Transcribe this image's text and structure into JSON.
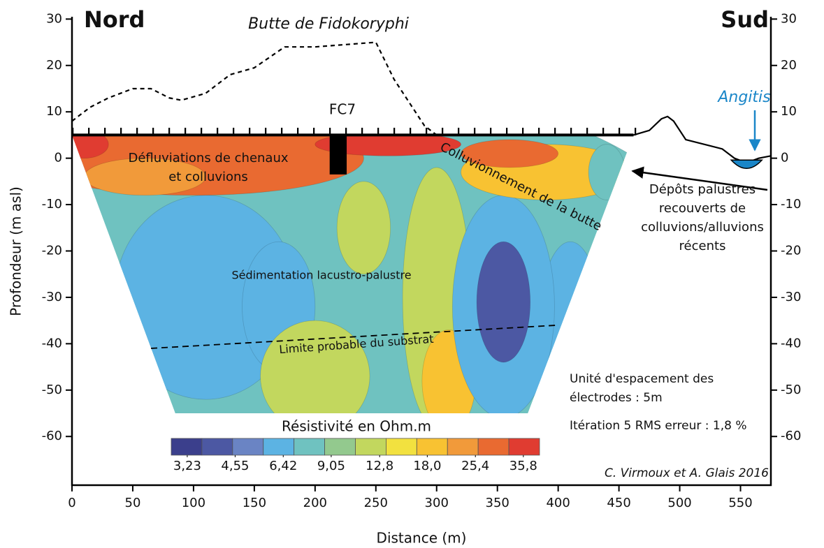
{
  "chart_data": {
    "type": "resistivity-section",
    "title_left": "Nord",
    "title_right": "Sud",
    "hill_label": "Butte de Fidokoryphi",
    "borehole": {
      "label": "FC7",
      "x": [
        212,
        226
      ],
      "y": [
        -3.5,
        5
      ]
    },
    "river_label": "Angitis",
    "annotations": {
      "channels": [
        "Défluviations de chenaux",
        "et colluvions"
      ],
      "colluvium": "Colluvionnement de la butte",
      "deposits": [
        "Dépôts palustres",
        "recouverts de",
        "colluvions/alluvions",
        "récents"
      ],
      "sedimentation": "Sédimentation lacustro-palustre",
      "substrate": "Limite probable du substrat"
    },
    "notes": {
      "spacing": [
        "Unité d'espacement des",
        "électrodes : 5m"
      ],
      "rms": "Itération 5 RMS erreur : 1,8 %"
    },
    "credit": "C. Virmoux et A. Glais 2016",
    "xlabel": "Distance (m)",
    "ylabel": "Profondeur (m asl)",
    "xlim": [
      0,
      575
    ],
    "xticks": [
      0,
      50,
      100,
      150,
      200,
      250,
      300,
      350,
      400,
      450,
      500,
      550
    ],
    "ylim": [
      -70.5,
      30.5
    ],
    "yticks": [
      30,
      20,
      10,
      0,
      -10,
      -20,
      -30,
      -40,
      -50,
      -60
    ],
    "y2lim": [
      -70.5,
      30.5
    ],
    "y2ticks": [
      30,
      20,
      10,
      0,
      -10,
      -20,
      -30,
      -40,
      -50,
      -60
    ],
    "topography": {
      "x": [
        0,
        15,
        30,
        50,
        65,
        80,
        90,
        110,
        130,
        150,
        175,
        200,
        250,
        265,
        290,
        300
      ],
      "y": [
        8,
        11,
        13,
        15,
        15,
        13,
        12.5,
        14,
        18,
        19.5,
        24,
        24,
        25,
        17,
        7,
        5
      ]
    },
    "ground": {
      "x": [
        462,
        475,
        485,
        490,
        495,
        505,
        520,
        535,
        545,
        555,
        565,
        575
      ],
      "y": [
        5,
        6,
        8.5,
        9,
        8,
        4,
        3,
        2,
        0,
        -1,
        0,
        0.5
      ]
    },
    "section": {
      "x": [
        0,
        462,
        375,
        85
      ],
      "y": [
        5,
        5,
        -55,
        -55
      ]
    },
    "substrate_line": {
      "x": [
        65,
        400
      ],
      "y": [
        -41,
        -36
      ]
    },
    "field": [
      {
        "x": 230,
        "y": -25,
        "rx": 300,
        "ry": 40,
        "value": 8.5
      },
      {
        "x": 110,
        "y": -30,
        "rx": 75,
        "ry": 22,
        "value": 6.5
      },
      {
        "x": 170,
        "y": -32,
        "rx": 30,
        "ry": 14,
        "value": 6.2
      },
      {
        "x": 200,
        "y": -47,
        "rx": 45,
        "ry": 12,
        "value": 11
      },
      {
        "x": 300,
        "y": -30,
        "rx": 28,
        "ry": 28,
        "value": 11
      },
      {
        "x": 240,
        "y": -15,
        "rx": 22,
        "ry": 10,
        "value": 11
      },
      {
        "x": 310,
        "y": -48,
        "rx": 22,
        "ry": 11,
        "value": 18
      },
      {
        "x": 410,
        "y": -40,
        "rx": 28,
        "ry": 22,
        "value": 6.3
      },
      {
        "x": 355,
        "y": -32,
        "rx": 42,
        "ry": 24,
        "value": 6.3
      },
      {
        "x": 355,
        "y": -31,
        "rx": 22,
        "ry": 13,
        "value": 4.2
      },
      {
        "x": 100,
        "y": 0,
        "rx": 140,
        "ry": 8,
        "value": 26
      },
      {
        "x": 60,
        "y": -4,
        "rx": 50,
        "ry": 4,
        "value": 22
      },
      {
        "x": 390,
        "y": -3,
        "rx": 70,
        "ry": 6,
        "value": 20
      },
      {
        "x": 360,
        "y": 1,
        "rx": 40,
        "ry": 3,
        "value": 26
      },
      {
        "x": 10,
        "y": 3,
        "rx": 20,
        "ry": 3,
        "value": 38
      },
      {
        "x": 260,
        "y": 3,
        "rx": 60,
        "ry": 2.5,
        "value": 38
      },
      {
        "x": 440,
        "y": -3,
        "rx": 15,
        "ry": 6,
        "value": 8
      }
    ],
    "colorbar": {
      "title": "Résistivité en Ohm.m",
      "scale": "log",
      "clim": [
        2.88,
        40.2
      ],
      "colors": [
        "#3b3f8c",
        "#4c58a3",
        "#6a84c4",
        "#5cb3e3",
        "#6fc2c0",
        "#93c98e",
        "#c2d75e",
        "#f2e13f",
        "#f8c232",
        "#f19a3a",
        "#e96a31",
        "#e03c31"
      ],
      "ticks": [
        {
          "value": 3.23,
          "label": "3,23"
        },
        {
          "value": 4.55,
          "label": "4,55"
        },
        {
          "value": 6.42,
          "label": "6,42"
        },
        {
          "value": 9.05,
          "label": "9,05"
        },
        {
          "value": 12.8,
          "label": "12,8"
        },
        {
          "value": 18.0,
          "label": "18,0"
        },
        {
          "value": 25.4,
          "label": "25,4"
        },
        {
          "value": 35.8,
          "label": "35,8"
        }
      ]
    }
  }
}
